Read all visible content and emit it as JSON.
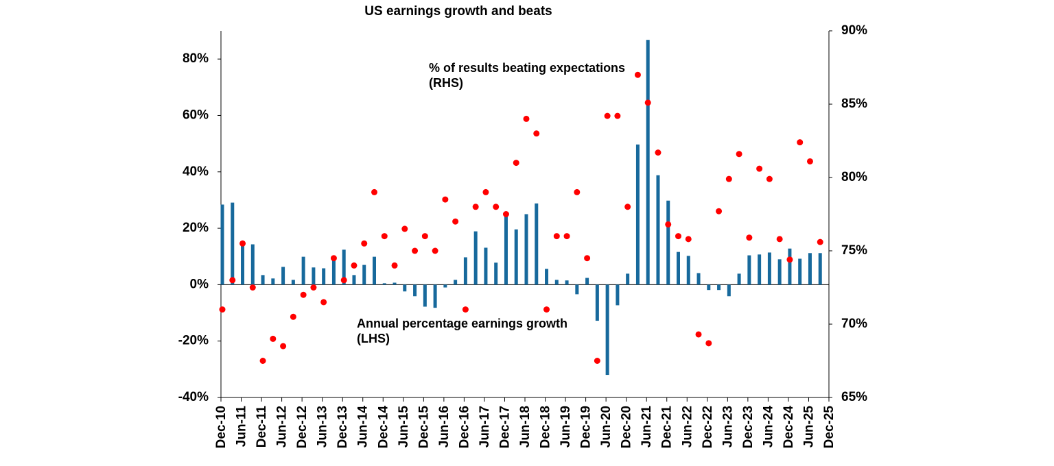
{
  "chart_data": {
    "type": "bar",
    "title": "US earnings growth and beats",
    "categories": [
      "Dec-10",
      null,
      "Jun-11",
      null,
      "Dec-11",
      null,
      "Jun-12",
      null,
      "Dec-12",
      null,
      "Jun-13",
      null,
      "Dec-13",
      null,
      "Jun-14",
      null,
      "Dec-14",
      null,
      "Jun-15",
      null,
      "Dec-15",
      null,
      "Jun-16",
      null,
      "Dec-16",
      null,
      "Jun-17",
      null,
      "Dec-17",
      null,
      "Jun-18",
      null,
      "Dec-18",
      null,
      "Jun-19",
      null,
      "Dec-19",
      null,
      "Jun-20",
      null,
      "Dec-20",
      null,
      "Jun-21",
      null,
      "Dec-21",
      null,
      "Jun-22",
      null,
      "Dec-22",
      null,
      "Jun-23",
      null,
      "Dec-23",
      null,
      "Jun-24",
      null,
      "Dec-24",
      null,
      "Jun-25",
      null,
      "Dec-25"
    ],
    "series": [
      {
        "name": "Annual percentage earnings growth (LHS)",
        "type": "bar",
        "color": "#17699c",
        "axis": "y",
        "values": [
          28.4,
          29.1,
          14.5,
          14.3,
          3.4,
          2.2,
          6.3,
          1.7,
          9.9,
          6.1,
          5.8,
          9.0,
          12.4,
          3.4,
          7.0,
          9.9,
          0.5,
          0.7,
          -2.4,
          -4.1,
          -7.8,
          -8.2,
          -1.0,
          1.7,
          9.7,
          18.9,
          13.1,
          7.8,
          25.0,
          19.6,
          25.0,
          28.8,
          5.6,
          1.7,
          1.5,
          -3.4,
          2.4,
          -12.8,
          -32.0,
          -7.3,
          3.9,
          49.7,
          86.8,
          38.8,
          29.8,
          11.6,
          10.2,
          4.1,
          -1.9,
          -1.9,
          -4.1,
          3.9,
          10.4,
          10.7,
          11.4,
          9.0,
          12.8,
          9.2,
          11.2,
          11.2,
          null
        ]
      },
      {
        "name": "% of results beating expectations (RHS)",
        "type": "scatter",
        "color": "#ff0000",
        "axis": "y2",
        "values": [
          71.0,
          73.0,
          75.5,
          72.5,
          67.5,
          69.0,
          68.5,
          70.5,
          72.0,
          72.5,
          71.5,
          74.5,
          73.0,
          74.0,
          75.5,
          79.0,
          76.0,
          74.0,
          76.5,
          75.0,
          76.0,
          75.0,
          78.5,
          77.0,
          71.0,
          78.0,
          79.0,
          78.0,
          77.5,
          81.0,
          84.0,
          83.0,
          71.0,
          76.0,
          76.0,
          79.0,
          74.5,
          67.5,
          84.2,
          84.2,
          78.0,
          87.0,
          85.1,
          81.7,
          76.8,
          76.0,
          75.8,
          69.3,
          68.7,
          77.7,
          79.9,
          81.6,
          75.9,
          80.6,
          79.9,
          75.8,
          74.4,
          82.4,
          81.1,
          75.6,
          null
        ]
      }
    ],
    "annotations": [
      {
        "text": "% of results beating expectations",
        "color": "#ff0000"
      },
      {
        "text": "(RHS)",
        "color": "#ff0000"
      },
      {
        "text": "Annual percentage earnings growth",
        "color": "#17699c"
      },
      {
        "text": "(LHS)",
        "color": "#17699c"
      }
    ],
    "ylim": [
      -40,
      90
    ],
    "yticks": [
      {
        "value": -40,
        "label": "-40%"
      },
      {
        "value": -20,
        "label": "-20%"
      },
      {
        "value": 0,
        "label": "0%"
      },
      {
        "value": 20,
        "label": "20%"
      },
      {
        "value": 40,
        "label": "40%"
      },
      {
        "value": 60,
        "label": "60%"
      },
      {
        "value": 80,
        "label": "80%"
      }
    ],
    "y2lim": [
      65,
      90
    ],
    "y2ticks": [
      {
        "value": 65,
        "label": "65%"
      },
      {
        "value": 70,
        "label": "70%"
      },
      {
        "value": 75,
        "label": "75%"
      },
      {
        "value": 80,
        "label": "80%"
      },
      {
        "value": 85,
        "label": "85%"
      },
      {
        "value": 90,
        "label": "90%"
      }
    ],
    "grid": false
  }
}
